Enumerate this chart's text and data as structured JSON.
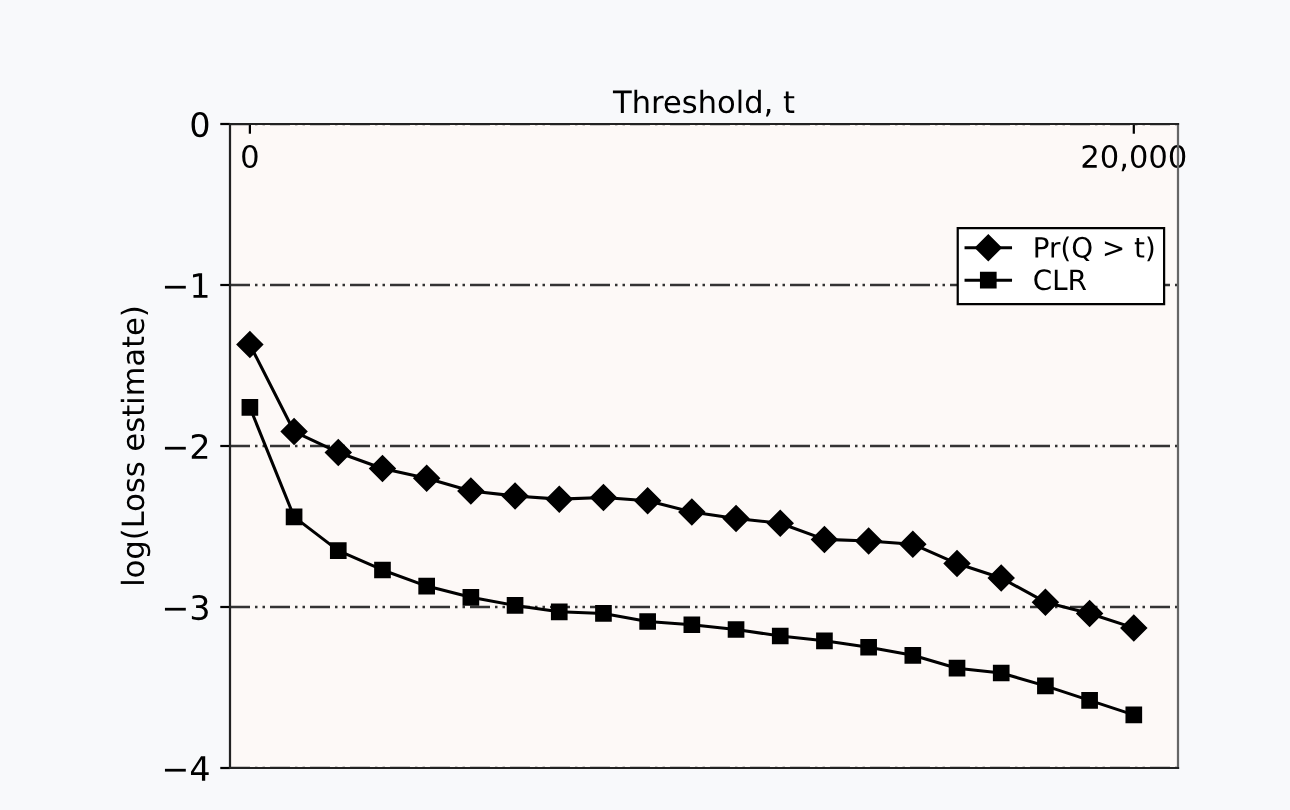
{
  "chart_data": {
    "type": "line",
    "xlabel": "Threshold, t",
    "ylabel": "log(Loss estimate)",
    "x": [
      0,
      1000,
      2000,
      3000,
      4000,
      5000,
      6000,
      7000,
      8000,
      9000,
      10000,
      11000,
      12000,
      13000,
      14000,
      15000,
      16000,
      17000,
      18000,
      19000,
      20000
    ],
    "series": [
      {
        "name": "Pr(Q > t)",
        "color": "#000000",
        "marker": "diamond",
        "values": [
          -1.37,
          -1.91,
          -2.04,
          -2.14,
          -2.2,
          -2.28,
          -2.31,
          -2.33,
          -2.32,
          -2.34,
          -2.41,
          -2.45,
          -2.48,
          -2.58,
          -2.59,
          -2.61,
          -2.73,
          -2.82,
          -2.97,
          -3.04,
          -3.13
        ]
      },
      {
        "name": "CLR",
        "color": "#000000",
        "marker": "square",
        "values": [
          -1.76,
          -2.44,
          -2.65,
          -2.77,
          -2.87,
          -2.94,
          -2.99,
          -3.03,
          -3.04,
          -3.09,
          -3.11,
          -3.14,
          -3.18,
          -3.21,
          -3.25,
          -3.3,
          -3.38,
          -3.41,
          -3.49,
          -3.58,
          -3.67
        ]
      }
    ],
    "xlim": [
      -450,
      21000
    ],
    "xticks": [
      0,
      {
        "value": 20000,
        "label": "20,000"
      }
    ],
    "ylim": [
      -4,
      0
    ],
    "yticks": [
      {
        "value": -4,
        "label": "−4"
      },
      {
        "value": -3,
        "label": "−3"
      },
      {
        "value": -2,
        "label": "−2"
      },
      {
        "value": -1,
        "label": "−1"
      },
      0
    ],
    "grid": "y",
    "legend": "top right"
  }
}
